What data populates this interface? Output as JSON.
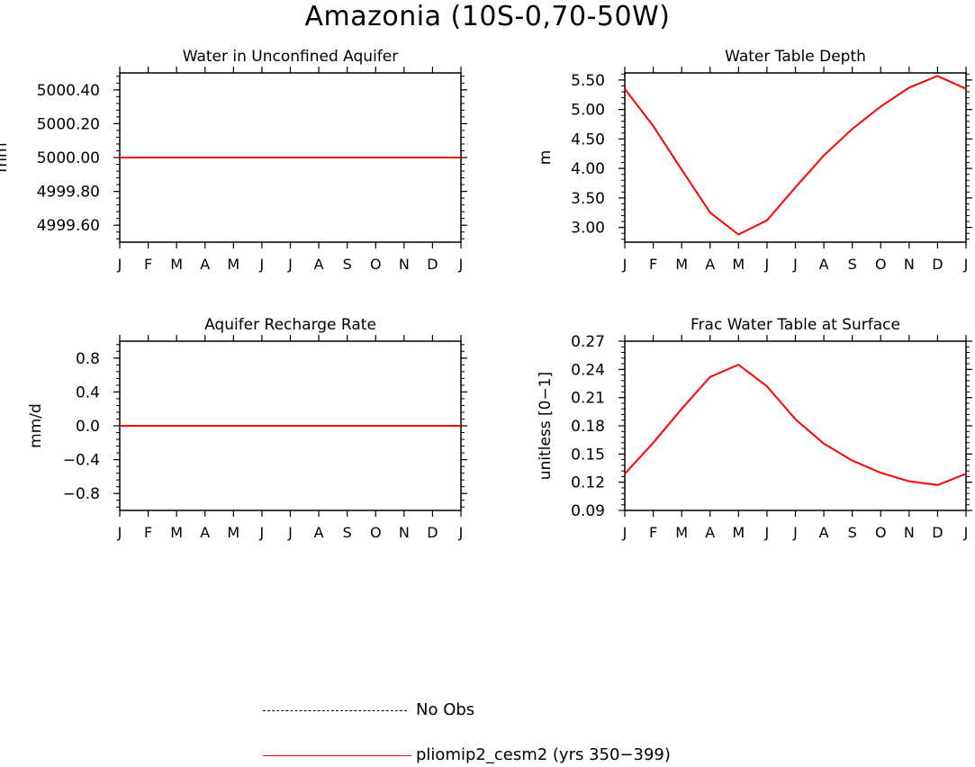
{
  "title": "Amazonia (10S-0,70-50W)",
  "months": [
    "J",
    "F",
    "M",
    "A",
    "M",
    "J",
    "J",
    "A",
    "S",
    "O",
    "N",
    "D",
    "J"
  ],
  "colors": {
    "model": "#ff0000",
    "obs": "#000000",
    "axis": "#000000"
  },
  "chart_data": [
    {
      "type": "line",
      "title": "Water in Unconfined Aquifer",
      "ylabel": "mm",
      "ylim": [
        4999.5,
        5000.5
      ],
      "yticks": [
        4999.6,
        4999.8,
        5000.0,
        5000.2,
        5000.4
      ],
      "ytick_labels": [
        "4999.60",
        "4999.80",
        "5000.00",
        "5000.20",
        "5000.40"
      ],
      "series": [
        {
          "name": "pliomip2_cesm2 (yrs 350-399)",
          "values": [
            5000,
            5000,
            5000,
            5000,
            5000,
            5000,
            5000,
            5000,
            5000,
            5000,
            5000,
            5000,
            5000
          ]
        }
      ]
    },
    {
      "type": "line",
      "title": "Water Table Depth",
      "ylabel": "m",
      "ylim": [
        2.75,
        5.62
      ],
      "yticks": [
        3.0,
        3.5,
        4.0,
        4.5,
        5.0,
        5.5
      ],
      "ytick_labels": [
        "3.00",
        "3.50",
        "4.00",
        "4.50",
        "5.00",
        "5.50"
      ],
      "series": [
        {
          "name": "pliomip2_cesm2 (yrs 350-399)",
          "values": [
            5.35,
            4.72,
            3.98,
            3.25,
            2.88,
            3.12,
            3.68,
            4.22,
            4.67,
            5.05,
            5.37,
            5.57,
            5.35
          ]
        }
      ]
    },
    {
      "type": "line",
      "title": "Aquifer Recharge Rate",
      "ylabel": "mm/d",
      "ylim": [
        -1.0,
        1.0
      ],
      "yticks": [
        -0.8,
        -0.4,
        0.0,
        0.4,
        0.8
      ],
      "ytick_labels": [
        "−0.8",
        "−0.4",
        "0.0",
        "0.4",
        "0.8"
      ],
      "series": [
        {
          "name": "pliomip2_cesm2 (yrs 350-399)",
          "values": [
            0,
            0,
            0,
            0,
            0,
            0,
            0,
            0,
            0,
            0,
            0,
            0,
            0
          ]
        }
      ]
    },
    {
      "type": "line",
      "title": "Frac Water Table at Surface",
      "ylabel": "unitless [0−1]",
      "ylim": [
        0.09,
        0.27
      ],
      "yticks": [
        0.09,
        0.12,
        0.15,
        0.18,
        0.21,
        0.24,
        0.27
      ],
      "ytick_labels": [
        "0.09",
        "0.12",
        "0.15",
        "0.18",
        "0.21",
        "0.24",
        "0.27"
      ],
      "series": [
        {
          "name": "pliomip2_cesm2 (yrs 350-399)",
          "values": [
            0.129,
            0.162,
            0.198,
            0.232,
            0.245,
            0.222,
            0.187,
            0.161,
            0.143,
            0.13,
            0.121,
            0.117,
            0.129
          ]
        }
      ]
    }
  ],
  "legend": [
    {
      "label": "No Obs",
      "style": "dashed"
    },
    {
      "label": "pliomip2_cesm2 (yrs 350−399)",
      "style": "solid"
    }
  ]
}
